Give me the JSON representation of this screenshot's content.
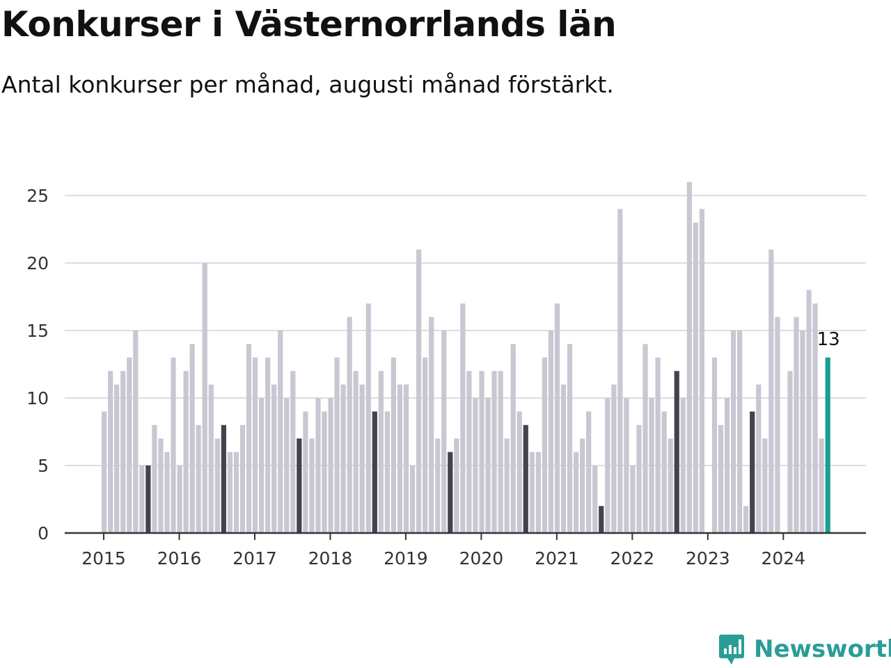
{
  "brand": {
    "name": "Newsworthy",
    "color": "#2a9d97",
    "icon": "newsworthy-logo-icon"
  },
  "colors": {
    "bar": "#c8c7d2",
    "august_bar": "#43424f",
    "latest_bar": "#1a9e92",
    "grid": "#dcdce2",
    "axis": "#333333"
  },
  "chart_data": {
    "type": "bar",
    "title": "Konkurser i Västernorrlands län",
    "subtitle": "Antal konkurser per månad, augusti månad förstärkt.",
    "xlabel": "",
    "ylabel": "",
    "ylim": [
      0,
      27
    ],
    "yticks": [
      0,
      5,
      10,
      15,
      20,
      25
    ],
    "x_tick_labels": [
      "2015",
      "2016",
      "2017",
      "2018",
      "2019",
      "2020",
      "2021",
      "2022",
      "2023",
      "2024"
    ],
    "grid": true,
    "legend": "none",
    "start": "2015-01",
    "end": "2024-08",
    "highlight": "august",
    "latest_value_label": "13",
    "values": [
      9,
      12,
      11,
      12,
      13,
      15,
      5,
      5,
      8,
      7,
      6,
      13,
      5,
      12,
      14,
      8,
      20,
      11,
      7,
      8,
      6,
      6,
      8,
      14,
      13,
      10,
      13,
      11,
      15,
      10,
      12,
      7,
      9,
      7,
      10,
      9,
      10,
      13,
      11,
      16,
      12,
      11,
      17,
      9,
      12,
      9,
      13,
      11,
      11,
      5,
      21,
      13,
      16,
      7,
      15,
      6,
      7,
      17,
      12,
      10,
      12,
      10,
      12,
      12,
      7,
      14,
      9,
      8,
      6,
      6,
      13,
      15,
      17,
      11,
      14,
      6,
      7,
      9,
      5,
      2,
      10,
      11,
      24,
      10,
      5,
      8,
      14,
      10,
      13,
      9,
      7,
      12,
      10,
      26,
      23,
      24,
      0,
      13,
      8,
      10,
      15,
      15,
      2,
      9,
      11,
      7,
      21,
      16,
      0,
      12,
      16,
      15,
      18,
      17,
      7,
      13
    ]
  }
}
